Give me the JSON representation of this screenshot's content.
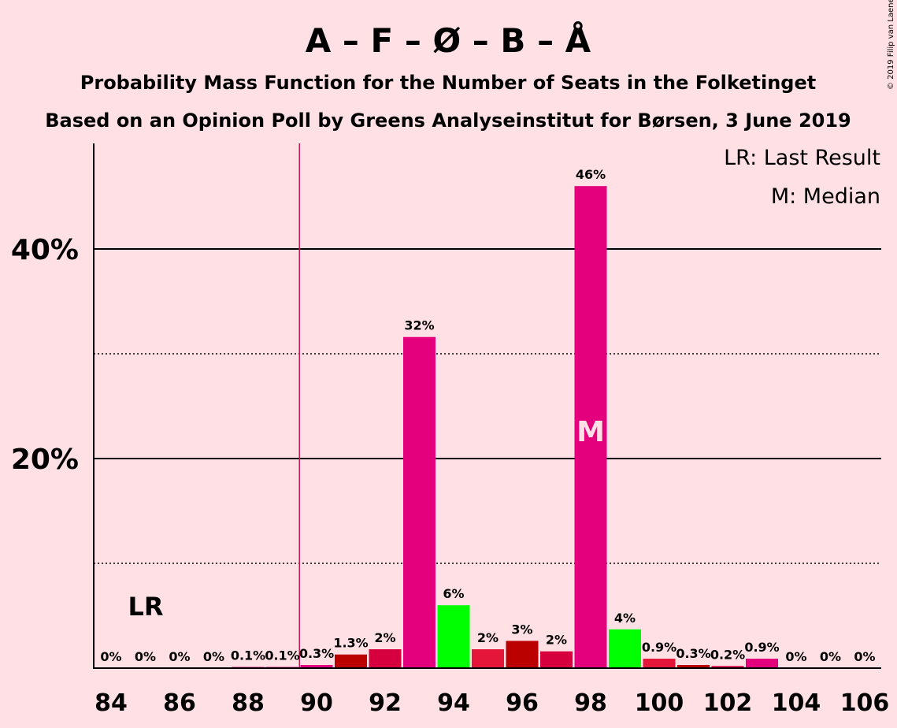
{
  "chart_data": {
    "type": "bar",
    "title": "A – F – Ø – B – Å",
    "subtitle": "Probability Mass Function for the Number of Seats in the Folketinget",
    "subtitle2": "Based on an Opinion Poll by Greens Analyseinstitut for Børsen, 3 June 2019",
    "copyright": "© 2019 Filip van Laenen",
    "legend": [
      "LR: Last Result",
      "M: Median"
    ],
    "last_result_label": "LR",
    "median_label": "M",
    "last_result_seat": 89.5,
    "median_seat": 98,
    "y_ticks": [
      20,
      40
    ],
    "y_tick_labels": [
      "20%",
      "40%"
    ],
    "ylim": [
      0,
      50
    ],
    "grid": "solid lines at 20% and 40%, dotted at 10% and 30%",
    "x_tick_labels": [
      "84",
      "86",
      "88",
      "90",
      "92",
      "94",
      "96",
      "98",
      "100",
      "102",
      "104",
      "106"
    ],
    "seats": [
      84,
      85,
      86,
      87,
      88,
      89,
      90,
      91,
      92,
      93,
      94,
      95,
      96,
      97,
      98,
      99,
      100,
      101,
      102,
      103,
      104,
      105,
      106
    ],
    "values": [
      0,
      0,
      0,
      0,
      0.1,
      0.1,
      0.3,
      1.3,
      1.8,
      31.6,
      6.0,
      1.8,
      2.6,
      1.6,
      46.0,
      3.7,
      0.9,
      0.3,
      0.2,
      0.9,
      0,
      0,
      0
    ],
    "labels": [
      "0%",
      "0%",
      "0%",
      "0%",
      "0.1%",
      "0.1%",
      "0.3%",
      "1.3%",
      "2%",
      "32%",
      "6%",
      "2%",
      "3%",
      "2%",
      "46%",
      "4%",
      "0.9%",
      "0.3%",
      "0.2%",
      "0.9%",
      "0%",
      "0%",
      "0%"
    ],
    "colors": [
      "#E4007C",
      "#E4007C",
      "#E4007C",
      "#E4007C",
      "#E4007C",
      "#E4007C",
      "#E4007C",
      "#BB0000",
      "#D7003F",
      "#E4007C",
      "#00FF00",
      "#E4163A",
      "#BB0000",
      "#D7003F",
      "#E4007C",
      "#00FF00",
      "#E4163A",
      "#BB0000",
      "#D7003F",
      "#E4007C",
      "#E4007C",
      "#E4007C",
      "#E4007C"
    ]
  }
}
